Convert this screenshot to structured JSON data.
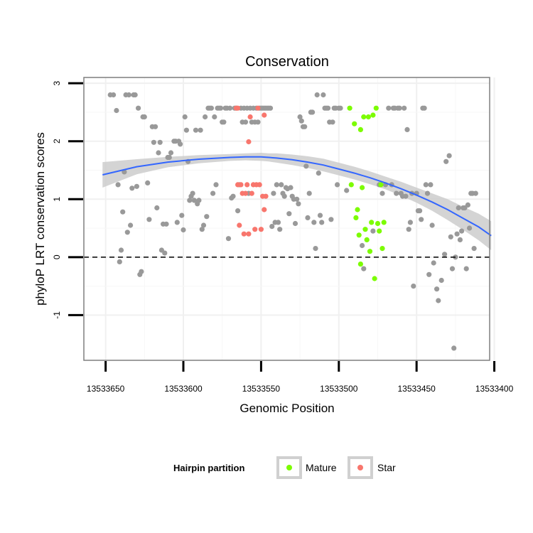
{
  "chart_data": {
    "type": "scatter",
    "title": "Conservation",
    "xlabel": "Genomic Position",
    "ylabel": "phyloP LRT conservation scores",
    "x_reversed": true,
    "xlim": [
      13533403,
      13533664
    ],
    "ylim": [
      -1.78,
      3.1
    ],
    "x_ticks": [
      13533650,
      13533600,
      13533550,
      13533500,
      13533450,
      13533400
    ],
    "y_ticks": [
      -1,
      0,
      1,
      2,
      3
    ],
    "grid": true,
    "reference_line": {
      "y": 0,
      "style": "dashed"
    },
    "legend": {
      "title": "Hairpin partition",
      "position": "bottom",
      "entries": [
        {
          "label": "Mature",
          "color": "#7CFC00"
        },
        {
          "label": "Star",
          "color": "#F8766D"
        }
      ]
    },
    "colors": {
      "other": "#999999",
      "mature": "#7CFC00",
      "star": "#F8766D",
      "smooth": "#3366FF",
      "ribbon": "#CCCCCC"
    },
    "series": [
      {
        "name": "Other",
        "points": [
          [
            13533647,
            2.8
          ],
          [
            13533645,
            2.8
          ],
          [
            13533643,
            2.53
          ],
          [
            13533642,
            1.25
          ],
          [
            13533640,
            0.12
          ],
          [
            13533641,
            -0.08
          ],
          [
            13533639,
            0.78
          ],
          [
            13533638,
            1.47
          ],
          [
            13533637,
            2.8
          ],
          [
            13533636,
            0.43
          ],
          [
            13533635,
            2.8
          ],
          [
            13533634,
            0.55
          ],
          [
            13533633,
            1.19
          ],
          [
            13533632,
            2.8
          ],
          [
            13533631,
            2.8
          ],
          [
            13533630,
            1.22
          ],
          [
            13533629,
            2.57
          ],
          [
            13533628,
            -0.3
          ],
          [
            13533627,
            -0.25
          ],
          [
            13533626,
            2.42
          ],
          [
            13533625,
            2.42
          ],
          [
            13533623,
            1.28
          ],
          [
            13533622,
            0.65
          ],
          [
            13533620,
            2.25
          ],
          [
            13533619,
            1.98
          ],
          [
            13533618,
            2.25
          ],
          [
            13533617,
            0.85
          ],
          [
            13533616,
            1.8
          ],
          [
            13533615,
            1.98
          ],
          [
            13533614,
            0.12
          ],
          [
            13533613,
            0.57
          ],
          [
            13533612,
            0.07
          ],
          [
            13533611,
            0.57
          ],
          [
            13533610,
            1.72
          ],
          [
            13533609,
            1.72
          ],
          [
            13533608,
            1.8
          ],
          [
            13533606,
            2.0
          ],
          [
            13533605,
            2.0
          ],
          [
            13533604,
            0.6
          ],
          [
            13533603,
            2.0
          ],
          [
            13533602,
            1.95
          ],
          [
            13533601,
            0.72
          ],
          [
            13533600,
            0.47
          ],
          [
            13533599,
            2.42
          ],
          [
            13533598,
            2.19
          ],
          [
            13533597,
            1.65
          ],
          [
            13533596,
            0.98
          ],
          [
            13533595,
            1.05
          ],
          [
            13533594,
            1.1
          ],
          [
            13533593,
            0.98
          ],
          [
            13533592,
            2.19
          ],
          [
            13533591,
            0.92
          ],
          [
            13533590,
            0.98
          ],
          [
            13533589,
            2.19
          ],
          [
            13533588,
            0.48
          ],
          [
            13533587,
            0.55
          ],
          [
            13533586,
            2.42
          ],
          [
            13533585,
            0.7
          ],
          [
            13533584,
            2.57
          ],
          [
            13533583,
            2.57
          ],
          [
            13533582,
            2.57
          ],
          [
            13533581,
            1.1
          ],
          [
            13533580,
            2.42
          ],
          [
            13533579,
            1.25
          ],
          [
            13533578,
            2.57
          ],
          [
            13533577,
            2.57
          ],
          [
            13533576,
            2.57
          ],
          [
            13533575,
            2.33
          ],
          [
            13533574,
            2.33
          ],
          [
            13533573,
            2.57
          ],
          [
            13533572,
            2.57
          ],
          [
            13533571,
            0.32
          ],
          [
            13533570,
            2.57
          ],
          [
            13533569,
            1.02
          ],
          [
            13533568,
            1.05
          ],
          [
            13533567,
            2.57
          ],
          [
            13533566,
            2.57
          ],
          [
            13533565,
            0.8
          ],
          [
            13533564,
            1.25
          ],
          [
            13533563,
            2.57
          ],
          [
            13533562,
            2.33
          ],
          [
            13533561,
            2.57
          ],
          [
            13533560,
            2.33
          ],
          [
            13533559,
            2.57
          ],
          [
            13533558,
            1.1
          ],
          [
            13533557,
            2.57
          ],
          [
            13533556,
            2.33
          ],
          [
            13533555,
            2.57
          ],
          [
            13533554,
            2.33
          ],
          [
            13533553,
            2.57
          ],
          [
            13533552,
            2.33
          ],
          [
            13533551,
            2.57
          ],
          [
            13533550,
            2.57
          ],
          [
            13533549,
            2.57
          ],
          [
            13533548,
            2.57
          ],
          [
            13533547,
            2.57
          ],
          [
            13533546,
            2.57
          ],
          [
            13533545,
            2.57
          ],
          [
            13533544,
            2.57
          ],
          [
            13533543,
            0.53
          ],
          [
            13533542,
            1.1
          ],
          [
            13533541,
            0.6
          ],
          [
            13533540,
            1.25
          ],
          [
            13533539,
            0.6
          ],
          [
            13533538,
            0.48
          ],
          [
            13533537,
            1.25
          ],
          [
            13533536,
            1.1
          ],
          [
            13533535,
            1.05
          ],
          [
            13533534,
            1.2
          ],
          [
            13533533,
            1.18
          ],
          [
            13533532,
            0.75
          ],
          [
            13533531,
            1.2
          ],
          [
            13533530,
            1.05
          ],
          [
            13533529,
            1.0
          ],
          [
            13533528,
            0.58
          ],
          [
            13533527,
            1.0
          ],
          [
            13533526,
            0.92
          ],
          [
            13533525,
            2.42
          ],
          [
            13533524,
            2.35
          ],
          [
            13533523,
            2.25
          ],
          [
            13533522,
            2.25
          ],
          [
            13533521,
            1.57
          ],
          [
            13533520,
            0.68
          ],
          [
            13533519,
            1.1
          ],
          [
            13533518,
            2.5
          ],
          [
            13533517,
            2.5
          ],
          [
            13533516,
            0.6
          ],
          [
            13533515,
            0.15
          ],
          [
            13533514,
            2.8
          ],
          [
            13533513,
            1.45
          ],
          [
            13533512,
            0.72
          ],
          [
            13533511,
            0.6
          ],
          [
            13533510,
            2.8
          ],
          [
            13533509,
            2.57
          ],
          [
            13533508,
            2.57
          ],
          [
            13533507,
            2.57
          ],
          [
            13533506,
            2.33
          ],
          [
            13533505,
            0.65
          ],
          [
            13533504,
            2.33
          ],
          [
            13533503,
            2.57
          ],
          [
            13533502,
            2.57
          ],
          [
            13533501,
            1.25
          ],
          [
            13533500,
            2.57
          ],
          [
            13533499,
            2.57
          ],
          [
            13533495,
            1.15
          ],
          [
            13533485,
            0.2
          ],
          [
            13533484,
            -0.2
          ],
          [
            13533478,
            0.45
          ],
          [
            13533474,
            1.25
          ],
          [
            13533472,
            1.1
          ],
          [
            13533470,
            1.25
          ],
          [
            13533468,
            2.57
          ],
          [
            13533466,
            1.25
          ],
          [
            13533465,
            2.57
          ],
          [
            13533464,
            2.57
          ],
          [
            13533463,
            1.1
          ],
          [
            13533462,
            2.57
          ],
          [
            13533461,
            2.57
          ],
          [
            13533460,
            1.1
          ],
          [
            13533459,
            1.05
          ],
          [
            13533458,
            2.57
          ],
          [
            13533457,
            1.05
          ],
          [
            13533456,
            2.2
          ],
          [
            13533455,
            0.48
          ],
          [
            13533454,
            0.6
          ],
          [
            13533453,
            1.1
          ],
          [
            13533452,
            -0.5
          ],
          [
            13533450,
            1.1
          ],
          [
            13533449,
            0.8
          ],
          [
            13533448,
            0.8
          ],
          [
            13533447,
            0.65
          ],
          [
            13533446,
            2.57
          ],
          [
            13533445,
            2.57
          ],
          [
            13533444,
            1.25
          ],
          [
            13533443,
            1.1
          ],
          [
            13533442,
            -0.3
          ],
          [
            13533441,
            1.25
          ],
          [
            13533440,
            0.55
          ],
          [
            13533439,
            -0.1
          ],
          [
            13533437,
            -0.55
          ],
          [
            13533436,
            -0.75
          ],
          [
            13533434,
            -0.4
          ],
          [
            13533432,
            0.05
          ],
          [
            13533431,
            1.65
          ],
          [
            13533429,
            1.75
          ],
          [
            13533428,
            0.35
          ],
          [
            13533427,
            -0.2
          ],
          [
            13533426,
            -1.57
          ],
          [
            13533425,
            0.0
          ],
          [
            13533424,
            0.4
          ],
          [
            13533423,
            0.85
          ],
          [
            13533422,
            0.3
          ],
          [
            13533421,
            0.45
          ],
          [
            13533420,
            0.85
          ],
          [
            13533419,
            0.85
          ],
          [
            13533418,
            -0.2
          ],
          [
            13533417,
            0.9
          ],
          [
            13533416,
            0.5
          ],
          [
            13533415,
            1.1
          ],
          [
            13533414,
            1.1
          ],
          [
            13533413,
            0.15
          ],
          [
            13533412,
            1.1
          ]
        ]
      },
      {
        "name": "Star",
        "points": [
          [
            13533566,
            2.57
          ],
          [
            13533565,
            2.57
          ],
          [
            13533565,
            1.25
          ],
          [
            13533564,
            0.55
          ],
          [
            13533563,
            1.25
          ],
          [
            13533562,
            1.1
          ],
          [
            13533561,
            0.4
          ],
          [
            13533560,
            1.1
          ],
          [
            13533559,
            1.25
          ],
          [
            13533558,
            0.4
          ],
          [
            13533558,
            1.99
          ],
          [
            13533557,
            2.42
          ],
          [
            13533556,
            1.1
          ],
          [
            13533555,
            1.25
          ],
          [
            13533554,
            0.48
          ],
          [
            13533553,
            1.25
          ],
          [
            13533552,
            2.57
          ],
          [
            13533551,
            1.25
          ],
          [
            13533550,
            0.48
          ],
          [
            13533549,
            1.05
          ],
          [
            13533548,
            2.45
          ],
          [
            13533548,
            0.82
          ],
          [
            13533547,
            1.05
          ]
        ]
      },
      {
        "name": "Mature",
        "points": [
          [
            13533493,
            2.57
          ],
          [
            13533492,
            1.25
          ],
          [
            13533490,
            2.3
          ],
          [
            13533489,
            0.68
          ],
          [
            13533488,
            0.82
          ],
          [
            13533487,
            0.38
          ],
          [
            13533486,
            2.2
          ],
          [
            13533486,
            -0.12
          ],
          [
            13533485,
            1.2
          ],
          [
            13533484,
            2.42
          ],
          [
            13533483,
            0.48
          ],
          [
            13533482,
            0.3
          ],
          [
            13533481,
            2.42
          ],
          [
            13533480,
            0.1
          ],
          [
            13533479,
            0.6
          ],
          [
            13533478,
            2.45
          ],
          [
            13533477,
            -0.37
          ],
          [
            13533476,
            2.57
          ],
          [
            13533475,
            0.58
          ],
          [
            13533474,
            0.45
          ],
          [
            13533473,
            1.25
          ],
          [
            13533472,
            0.15
          ],
          [
            13533471,
            0.6
          ]
        ]
      }
    ],
    "smooth": {
      "x": [
        13533652,
        13533630,
        13533610,
        13533590,
        13533570,
        13533560,
        13533550,
        13533545,
        13533540,
        13533530,
        13533520,
        13533510,
        13533500,
        13533490,
        13533480,
        13533470,
        13533460,
        13533450,
        13533440,
        13533430,
        13533420,
        13533410,
        13533402
      ],
      "y": [
        1.42,
        1.56,
        1.64,
        1.69,
        1.72,
        1.73,
        1.73,
        1.72,
        1.71,
        1.68,
        1.64,
        1.59,
        1.52,
        1.45,
        1.37,
        1.28,
        1.18,
        1.07,
        0.95,
        0.82,
        0.67,
        0.52,
        0.37
      ],
      "ribbon_lower": [
        1.2,
        1.43,
        1.55,
        1.62,
        1.66,
        1.67,
        1.66,
        1.65,
        1.63,
        1.59,
        1.54,
        1.48,
        1.41,
        1.34,
        1.26,
        1.17,
        1.06,
        0.94,
        0.8,
        0.64,
        0.47,
        0.29,
        0.12
      ],
      "ribbon_upper": [
        1.64,
        1.69,
        1.73,
        1.76,
        1.78,
        1.79,
        1.8,
        1.79,
        1.79,
        1.77,
        1.74,
        1.7,
        1.63,
        1.56,
        1.48,
        1.39,
        1.3,
        1.2,
        1.1,
        1.0,
        0.87,
        0.75,
        0.62
      ]
    }
  }
}
